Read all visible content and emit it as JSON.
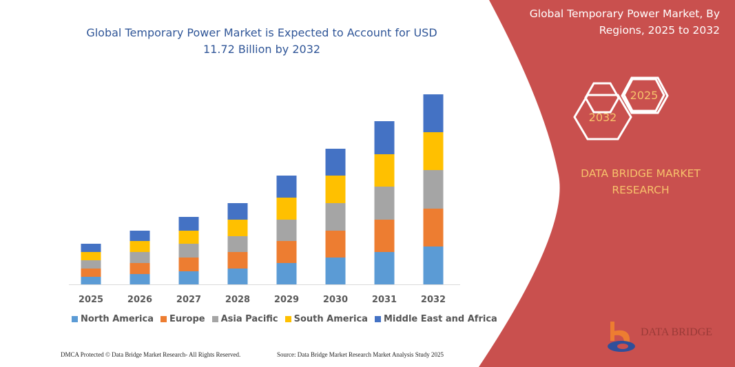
{
  "chart_data": {
    "type": "bar",
    "stacked": true,
    "title": "Global Temporary Power Market is Expected to Account for USD 11.72 Billion by 2032",
    "categories": [
      "2025",
      "2026",
      "2027",
      "2028",
      "2029",
      "2030",
      "2031",
      "2032"
    ],
    "series": [
      {
        "name": "North America",
        "color": "#5b9bd5",
        "values": [
          11,
          15,
          19,
          23,
          31,
          39,
          47,
          55
        ]
      },
      {
        "name": "Europe",
        "color": "#ed7d31",
        "values": [
          12,
          16,
          20,
          24,
          32,
          39,
          47,
          55
        ]
      },
      {
        "name": "Asia Pacific",
        "color": "#a5a5a5",
        "values": [
          12,
          16,
          20,
          23,
          31,
          40,
          48,
          56
        ]
      },
      {
        "name": "South America",
        "color": "#ffc000",
        "values": [
          12,
          16,
          19,
          24,
          32,
          40,
          47,
          55
        ]
      },
      {
        "name": "Middle East and Africa",
        "color": "#4472c4",
        "values": [
          12,
          15,
          20,
          24,
          32,
          39,
          48,
          55
        ]
      }
    ],
    "ylim": [
      0,
      280
    ],
    "y_axis_shown": false,
    "grid": false,
    "legend": "bottom"
  },
  "panel": {
    "title": "Global Temporary Power Market, By Regions, 2025 to 2032",
    "hex_start": "2025",
    "hex_end": "2032",
    "brand": "DATA BRIDGE MARKET RESEARCH",
    "logo_text": "DATA BRIDGE",
    "color": "#c9504e"
  },
  "footer": {
    "left": "DMCA Protected © Data Bridge Market Research-  All Rights Reserved.",
    "right": "Source: Data Bridge Market Research  Market Analysis Study 2025"
  }
}
